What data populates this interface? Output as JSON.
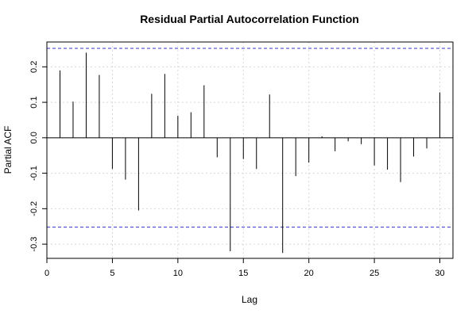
{
  "chart_data": {
    "type": "bar",
    "title": "Residual Partial Autocorrelation Function",
    "xlabel": "Lag",
    "ylabel": "Partial ACF",
    "xlim": [
      0,
      31
    ],
    "ylim": [
      -0.34,
      0.27
    ],
    "x_ticks": [
      0,
      5,
      10,
      15,
      20,
      25,
      30
    ],
    "x_tick_labels": [
      "0",
      "5",
      "10",
      "15",
      "20",
      "25",
      "30"
    ],
    "y_ticks": [
      -0.3,
      -0.2,
      -0.1,
      0.0,
      0.1,
      0.2
    ],
    "y_tick_labels": [
      "-0.3",
      "-0.2",
      "-0.1",
      "0.0",
      "0.1",
      "0.2"
    ],
    "grid": true,
    "confidence_band": [
      0.252,
      -0.252
    ],
    "colors": {
      "spike": "#000000",
      "confidence_band": "#3333cc",
      "grid": "#d8d8d8",
      "zero_line": "#000000"
    },
    "series": [
      {
        "x": [
          1,
          2,
          3,
          4,
          5,
          6,
          7,
          8,
          9,
          10,
          11,
          12,
          13,
          14,
          15,
          16,
          17,
          18,
          19,
          20,
          21,
          22,
          23,
          24,
          25,
          26,
          27,
          28,
          29,
          30
        ],
        "values": [
          0.19,
          0.102,
          0.24,
          0.177,
          -0.088,
          -0.118,
          -0.205,
          0.124,
          0.18,
          0.062,
          0.072,
          0.148,
          -0.055,
          -0.32,
          -0.06,
          -0.088,
          0.122,
          -0.325,
          -0.108,
          -0.07,
          0.004,
          -0.038,
          -0.01,
          -0.018,
          -0.078,
          -0.09,
          -0.125,
          -0.053,
          -0.03,
          0.128
        ]
      }
    ]
  }
}
